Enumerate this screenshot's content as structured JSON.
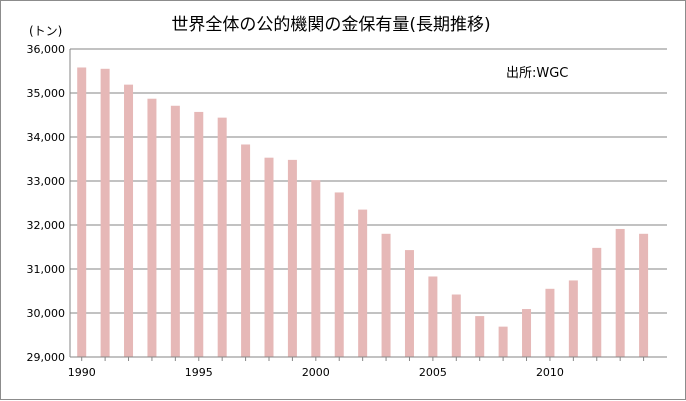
{
  "chart_data": {
    "type": "bar",
    "title": "世界全体の公的機関の金保有量(長期推移)",
    "unit_label": "(トン)",
    "source_note": "出所:WGC",
    "xlabel": "",
    "ylabel": "",
    "ylim": [
      29000,
      36000
    ],
    "ytick_step": 1000,
    "grid": true,
    "legend": "none",
    "years": [
      1990,
      1991,
      1992,
      1993,
      1994,
      1995,
      1996,
      1997,
      1998,
      1999,
      2000,
      2001,
      2002,
      2003,
      2004,
      2005,
      2006,
      2007,
      2008,
      2009,
      2010,
      2011,
      2012,
      2013,
      2014
    ],
    "values": [
      35580,
      35550,
      35190,
      34870,
      34710,
      34570,
      34440,
      33830,
      33530,
      33480,
      33020,
      32740,
      32350,
      31800,
      31430,
      30830,
      30420,
      29930,
      29690,
      30090,
      30550,
      30740,
      31480,
      31910,
      31800
    ],
    "xtick_labels": [
      "1990",
      "1995",
      "2000",
      "2005",
      "2010"
    ],
    "bar_color": "#e6b8b7",
    "grid_color": "#868686"
  }
}
